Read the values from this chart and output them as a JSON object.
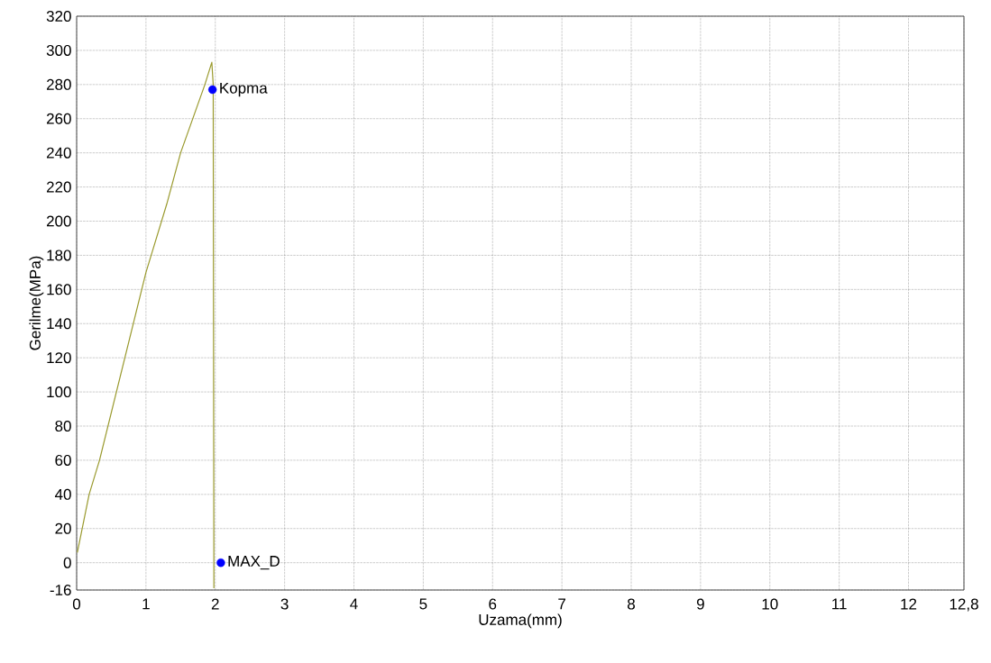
{
  "chart_data": {
    "type": "line",
    "xlabel": "Uzama(mm)",
    "ylabel": "Gerilme(MPa)",
    "series": [
      {
        "type": "line",
        "color": "#9a9a2e",
        "x": [
          0.01,
          0.18,
          0.33,
          1.0,
          1.3,
          1.5,
          1.85,
          1.95,
          1.97,
          1.98
        ],
        "values": [
          6,
          40,
          60,
          170,
          210,
          240,
          280,
          293,
          280,
          -15
        ]
      },
      {
        "type": "scatter",
        "color": "#0000ff",
        "marker": "circle",
        "x": [
          1.96,
          2.08
        ],
        "values": [
          277,
          0
        ]
      }
    ],
    "annotations": [
      {
        "text": "Kopma",
        "x": 1.96,
        "y": 277
      },
      {
        "text": "MAX_D",
        "x": 2.08,
        "y": 0
      }
    ],
    "xlim": [
      0,
      12.8
    ],
    "ylim": [
      -16,
      320
    ],
    "xticks": [
      0,
      1,
      2,
      3,
      4,
      5,
      6,
      7,
      8,
      9,
      10,
      11,
      12,
      {
        "value": 12.8,
        "label": "12,8"
      }
    ],
    "yticks": [
      -16,
      0,
      20,
      40,
      60,
      80,
      100,
      120,
      140,
      160,
      180,
      200,
      220,
      240,
      260,
      280,
      300,
      320
    ],
    "grid": true,
    "marker": "none",
    "line_style": "solid"
  }
}
